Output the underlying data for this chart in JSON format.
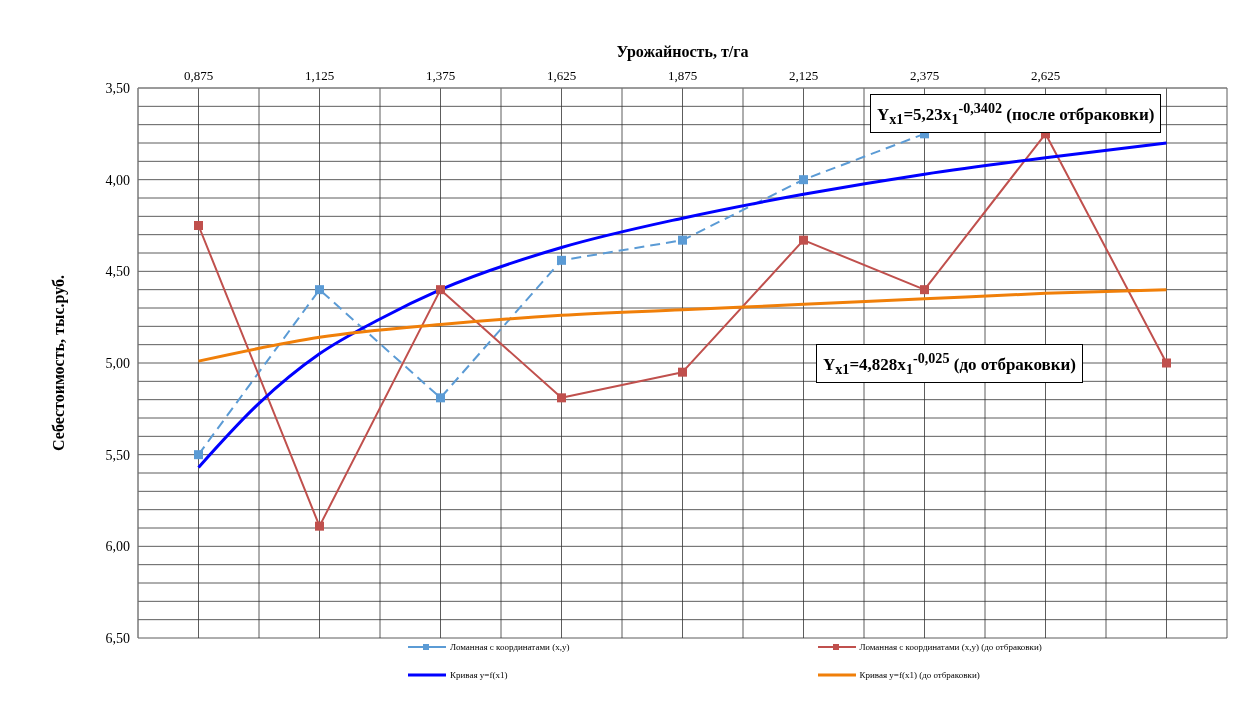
{
  "chart_data": {
    "type": "line",
    "xlabel": "Урожайность, т/га",
    "ylabel": "Себестоимость, тыс.руб.",
    "xlim": [
      0.75,
      3.0
    ],
    "xticks": [
      {
        "value": 0.75,
        "label": null
      },
      {
        "value": 0.875,
        "label": "0,875"
      },
      {
        "value": 1.0,
        "label": null
      },
      {
        "value": 1.125,
        "label": "1,125"
      },
      {
        "value": 1.25,
        "label": null
      },
      {
        "value": 1.375,
        "label": "1,375"
      },
      {
        "value": 1.5,
        "label": null
      },
      {
        "value": 1.625,
        "label": "1,625"
      },
      {
        "value": 1.75,
        "label": null
      },
      {
        "value": 1.875,
        "label": "1,875"
      },
      {
        "value": 2.0,
        "label": null
      },
      {
        "value": 2.125,
        "label": "2,125"
      },
      {
        "value": 2.25,
        "label": null
      },
      {
        "value": 2.375,
        "label": "2,375"
      },
      {
        "value": 2.5,
        "label": null
      },
      {
        "value": 2.625,
        "label": "2,625"
      },
      {
        "value": 2.75,
        "label": null
      },
      {
        "value": 2.875,
        "label": null
      },
      {
        "value": 3.0,
        "label": null
      }
    ],
    "ylim": [
      6.5,
      3.5
    ],
    "yticks": [
      {
        "value": 3.5,
        "label": "3,50"
      },
      {
        "value": 3.6,
        "label": null
      },
      {
        "value": 3.7,
        "label": null
      },
      {
        "value": 3.8,
        "label": null
      },
      {
        "value": 3.9,
        "label": null
      },
      {
        "value": 4.0,
        "label": "4,00"
      },
      {
        "value": 4.1,
        "label": null
      },
      {
        "value": 4.2,
        "label": null
      },
      {
        "value": 4.3,
        "label": null
      },
      {
        "value": 4.4,
        "label": null
      },
      {
        "value": 4.5,
        "label": "4,50"
      },
      {
        "value": 4.6,
        "label": null
      },
      {
        "value": 4.7,
        "label": null
      },
      {
        "value": 4.8,
        "label": null
      },
      {
        "value": 4.9,
        "label": null
      },
      {
        "value": 5.0,
        "label": "5,00"
      },
      {
        "value": 5.1,
        "label": null
      },
      {
        "value": 5.2,
        "label": null
      },
      {
        "value": 5.3,
        "label": null
      },
      {
        "value": 5.4,
        "label": null
      },
      {
        "value": 5.5,
        "label": "5,50"
      },
      {
        "value": 5.6,
        "label": null
      },
      {
        "value": 5.7,
        "label": null
      },
      {
        "value": 5.8,
        "label": null
      },
      {
        "value": 5.9,
        "label": null
      },
      {
        "value": 6.0,
        "label": "6,00"
      },
      {
        "value": 6.1,
        "label": null
      },
      {
        "value": 6.2,
        "label": null
      },
      {
        "value": 6.3,
        "label": null
      },
      {
        "value": 6.4,
        "label": null
      },
      {
        "value": 6.5,
        "label": "6,50"
      }
    ],
    "grid": true,
    "legend": "bottom",
    "series": [
      {
        "name": "Ломанная с координатами (x,y)",
        "color": "#5b9bd5",
        "marker": "square",
        "line_style": "dashed",
        "x": [
          0.875,
          1.125,
          1.375,
          1.625,
          1.875,
          2.125,
          2.375
        ],
        "values": [
          5.5,
          4.6,
          5.19,
          4.44,
          4.33,
          4.0,
          3.75
        ]
      },
      {
        "name": "Ломанная с координатами (x,y)  (до отбраковки)",
        "color": "#c0504d",
        "marker": "square",
        "line_style": "solid",
        "x": [
          0.875,
          1.125,
          1.375,
          1.625,
          1.875,
          2.125,
          2.375,
          2.625,
          2.875
        ],
        "values": [
          4.25,
          5.89,
          4.6,
          5.19,
          5.05,
          4.33,
          4.6,
          3.75,
          5.0
        ]
      },
      {
        "name": "Кривая y=f(x1)",
        "color": "#0000ff",
        "marker": "none",
        "line_style": "solid",
        "x": [
          0.875,
          1.0,
          1.125,
          1.25,
          1.375,
          1.625,
          1.875,
          2.125,
          2.375,
          2.625,
          2.875
        ],
        "values": [
          5.57,
          5.22,
          4.95,
          4.76,
          4.6,
          4.37,
          4.21,
          4.08,
          3.97,
          3.88,
          3.8
        ]
      },
      {
        "name": "Кривая y=f(x1)  (до отбраковки)",
        "color": "#f07f09",
        "marker": "none",
        "line_style": "solid",
        "x": [
          0.875,
          1.125,
          1.375,
          1.625,
          1.875,
          2.125,
          2.375,
          2.625,
          2.875
        ],
        "values": [
          4.99,
          4.86,
          4.79,
          4.74,
          4.71,
          4.68,
          4.65,
          4.62,
          4.6
        ]
      }
    ],
    "annotations": [
      "Y$_{x1}$=5,23x$_{1}$$^{-0,3402}$ (после отбраковки)",
      "Y$_{x1}$=4,828x$_{1}$$^{-0,025}$ (до отбраковки)"
    ]
  }
}
